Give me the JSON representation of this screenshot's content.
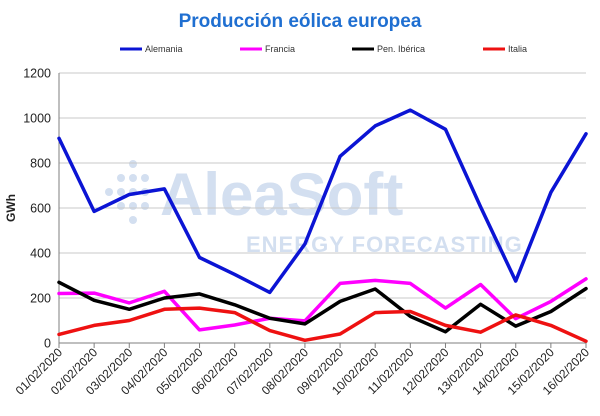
{
  "title": "Producción eólica europea",
  "watermark": {
    "brand": "AleaSoft",
    "tagline": "ENERGY FORECASTING"
  },
  "chart_data": {
    "type": "line",
    "title": "Producción eólica europea",
    "ylabel": "GWh",
    "xlabel": "",
    "ylim": [
      0,
      1200
    ],
    "yticks": [
      0,
      200,
      400,
      600,
      800,
      1000,
      1200
    ],
    "grid": "horizontal",
    "legend_position": "top",
    "categories": [
      "01/02/2020",
      "02/02/2020",
      "03/02/2020",
      "04/02/2020",
      "05/02/2020",
      "06/02/2020",
      "07/02/2020",
      "08/02/2020",
      "09/02/2020",
      "10/02/2020",
      "11/02/2020",
      "12/02/2020",
      "13/02/2020",
      "14/02/2020",
      "15/02/2020",
      "16/02/2020"
    ],
    "series": [
      {
        "name": "Alemania",
        "color": "#0b14d4",
        "values": [
          910,
          585,
          660,
          685,
          380,
          305,
          225,
          440,
          830,
          965,
          1035,
          950,
          605,
          275,
          670,
          930
        ]
      },
      {
        "name": "Francia",
        "color": "#ff00ff",
        "values": [
          220,
          222,
          178,
          230,
          58,
          80,
          110,
          98,
          265,
          278,
          265,
          155,
          260,
          108,
          185,
          285
        ]
      },
      {
        "name": "Pen. Ibérica",
        "color": "#000000",
        "values": [
          270,
          190,
          150,
          200,
          218,
          170,
          110,
          85,
          185,
          240,
          118,
          50,
          172,
          75,
          140,
          242
        ]
      },
      {
        "name": "Italia",
        "color": "#ee1111",
        "values": [
          38,
          78,
          100,
          150,
          155,
          135,
          55,
          12,
          40,
          135,
          140,
          78,
          48,
          125,
          78,
          8
        ]
      }
    ]
  }
}
